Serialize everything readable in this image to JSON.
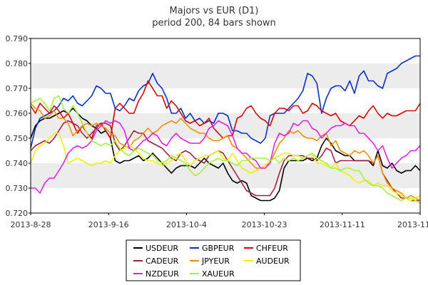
{
  "chart_data": {
    "type": "line",
    "title": "Majors vs EUR (D1)",
    "subtitle": "period 200, 84 bars shown",
    "ylim": [
      0.72,
      0.79
    ],
    "y_ticks": [
      "0.790",
      "0.780",
      "0.770",
      "0.760",
      "0.750",
      "0.740",
      "0.730",
      "0.720"
    ],
    "x_tick_labels": [
      "2013-8-28",
      "2013-9-16",
      "2013-10-4",
      "2013-10-23",
      "2013-11-11",
      "2013-11-29"
    ],
    "x_count": 84,
    "grid": "horizontal bands",
    "legend_position": "bottom",
    "series": [
      {
        "name": "USDEUR",
        "color": "#000000",
        "values": [
          0.75,
          0.755,
          0.757,
          0.758,
          0.758,
          0.759,
          0.76,
          0.761,
          0.76,
          0.762,
          0.76,
          0.758,
          0.757,
          0.755,
          0.754,
          0.752,
          0.753,
          0.75,
          0.741,
          0.74,
          0.741,
          0.741,
          0.742,
          0.743,
          0.741,
          0.742,
          0.744,
          0.742,
          0.74,
          0.738,
          0.736,
          0.738,
          0.739,
          0.739,
          0.739,
          0.738,
          0.74,
          0.742,
          0.74,
          0.739,
          0.738,
          0.74,
          0.736,
          0.733,
          0.732,
          0.733,
          0.732,
          0.727,
          0.726,
          0.725,
          0.725,
          0.725,
          0.726,
          0.729,
          0.738,
          0.741,
          0.741,
          0.741,
          0.741,
          0.742,
          0.741,
          0.742,
          0.747,
          0.75,
          0.748,
          0.745,
          0.744,
          0.743,
          0.743,
          0.741,
          0.741,
          0.741,
          0.741,
          0.739,
          0.745,
          0.739,
          0.738,
          0.74,
          0.737,
          0.736,
          0.737,
          0.737,
          0.739,
          0.737
        ]
      },
      {
        "name": "GBPEUR",
        "color": "#0a2fc5",
        "values": [
          0.746,
          0.754,
          0.758,
          0.759,
          0.76,
          0.761,
          0.763,
          0.766,
          0.765,
          0.767,
          0.764,
          0.763,
          0.765,
          0.767,
          0.771,
          0.77,
          0.768,
          0.768,
          0.762,
          0.761,
          0.763,
          0.766,
          0.765,
          0.769,
          0.771,
          0.772,
          0.776,
          0.772,
          0.77,
          0.766,
          0.76,
          0.76,
          0.762,
          0.758,
          0.76,
          0.757,
          0.758,
          0.756,
          0.757,
          0.756,
          0.76,
          0.76,
          0.759,
          0.753,
          0.753,
          0.752,
          0.752,
          0.75,
          0.749,
          0.748,
          0.75,
          0.759,
          0.76,
          0.76,
          0.76,
          0.762,
          0.764,
          0.766,
          0.769,
          0.776,
          0.775,
          0.772,
          0.76,
          0.766,
          0.77,
          0.771,
          0.771,
          0.769,
          0.773,
          0.768,
          0.775,
          0.777,
          0.773,
          0.773,
          0.771,
          0.77,
          0.776,
          0.777,
          0.778,
          0.78,
          0.781,
          0.782,
          0.783,
          0.783
        ]
      },
      {
        "name": "CHFEUR",
        "color": "#d80000",
        "values": [
          0.763,
          0.76,
          0.764,
          0.762,
          0.76,
          0.763,
          0.761,
          0.758,
          0.76,
          0.756,
          0.752,
          0.755,
          0.752,
          0.75,
          0.755,
          0.756,
          0.753,
          0.75,
          0.762,
          0.764,
          0.762,
          0.76,
          0.76,
          0.765,
          0.768,
          0.773,
          0.77,
          0.767,
          0.767,
          0.762,
          0.765,
          0.763,
          0.76,
          0.757,
          0.756,
          0.757,
          0.755,
          0.756,
          0.758,
          0.754,
          0.752,
          0.75,
          0.751,
          0.751,
          0.758,
          0.759,
          0.762,
          0.763,
          0.76,
          0.758,
          0.757,
          0.755,
          0.76,
          0.762,
          0.762,
          0.761,
          0.763,
          0.763,
          0.76,
          0.761,
          0.764,
          0.763,
          0.761,
          0.76,
          0.759,
          0.76,
          0.757,
          0.756,
          0.755,
          0.757,
          0.759,
          0.758,
          0.761,
          0.763,
          0.76,
          0.758,
          0.76,
          0.759,
          0.759,
          0.76,
          0.761,
          0.761,
          0.761,
          0.764
        ]
      },
      {
        "name": "CADEUR",
        "color": "#a02040",
        "values": [
          0.745,
          0.747,
          0.748,
          0.749,
          0.748,
          0.75,
          0.753,
          0.756,
          0.757,
          0.756,
          0.755,
          0.752,
          0.75,
          0.752,
          0.754,
          0.756,
          0.756,
          0.755,
          0.748,
          0.745,
          0.747,
          0.75,
          0.753,
          0.752,
          0.752,
          0.749,
          0.748,
          0.747,
          0.746,
          0.744,
          0.742,
          0.741,
          0.744,
          0.745,
          0.744,
          0.742,
          0.741,
          0.74,
          0.743,
          0.744,
          0.745,
          0.744,
          0.741,
          0.738,
          0.735,
          0.732,
          0.729,
          0.728,
          0.727,
          0.727,
          0.727,
          0.727,
          0.73,
          0.736,
          0.741,
          0.743,
          0.743,
          0.743,
          0.743,
          0.742,
          0.742,
          0.741,
          0.743,
          0.746,
          0.745,
          0.74,
          0.741,
          0.741,
          0.741,
          0.741,
          0.741,
          0.741,
          0.741,
          0.74,
          0.743,
          0.736,
          0.733,
          0.73,
          0.728,
          0.726,
          0.726,
          0.725,
          0.725,
          0.725
        ]
      },
      {
        "name": "JPYEUR",
        "color": "#ee9000",
        "values": [
          0.764,
          0.762,
          0.761,
          0.758,
          0.759,
          0.761,
          0.758,
          0.758,
          0.756,
          0.751,
          0.753,
          0.755,
          0.756,
          0.755,
          0.756,
          0.755,
          0.754,
          0.752,
          0.751,
          0.748,
          0.747,
          0.746,
          0.749,
          0.75,
          0.752,
          0.754,
          0.752,
          0.753,
          0.755,
          0.756,
          0.757,
          0.756,
          0.758,
          0.756,
          0.754,
          0.753,
          0.752,
          0.752,
          0.75,
          0.749,
          0.749,
          0.75,
          0.751,
          0.747,
          0.746,
          0.744,
          0.742,
          0.74,
          0.738,
          0.738,
          0.739,
          0.74,
          0.744,
          0.748,
          0.75,
          0.753,
          0.752,
          0.753,
          0.751,
          0.75,
          0.75,
          0.749,
          0.751,
          0.752,
          0.747,
          0.749,
          0.745,
          0.744,
          0.743,
          0.745,
          0.744,
          0.745,
          0.743,
          0.74,
          0.743,
          0.736,
          0.732,
          0.73,
          0.729,
          0.728,
          0.726,
          0.727,
          0.726,
          0.725
        ]
      },
      {
        "name": "AUDEUR",
        "color": "#f0f000",
        "values": [
          0.74,
          0.745,
          0.747,
          0.748,
          0.75,
          0.752,
          0.752,
          0.747,
          0.74,
          0.741,
          0.742,
          0.741,
          0.74,
          0.739,
          0.74,
          0.74,
          0.741,
          0.74,
          0.743,
          0.745,
          0.746,
          0.747,
          0.746,
          0.744,
          0.742,
          0.741,
          0.741,
          0.74,
          0.739,
          0.74,
          0.741,
          0.743,
          0.744,
          0.741,
          0.739,
          0.741,
          0.742,
          0.743,
          0.743,
          0.744,
          0.745,
          0.742,
          0.741,
          0.744,
          0.741,
          0.738,
          0.737,
          0.736,
          0.737,
          0.738,
          0.739,
          0.741,
          0.742,
          0.743,
          0.744,
          0.744,
          0.743,
          0.743,
          0.742,
          0.743,
          0.744,
          0.74,
          0.74,
          0.739,
          0.738,
          0.74,
          0.737,
          0.736,
          0.735,
          0.733,
          0.732,
          0.733,
          0.733,
          0.731,
          0.732,
          0.731,
          0.731,
          0.729,
          0.728,
          0.727,
          0.726,
          0.725,
          0.726,
          0.727
        ]
      },
      {
        "name": "NZDEUR",
        "color": "#e020e0",
        "values": [
          0.73,
          0.73,
          0.728,
          0.732,
          0.734,
          0.734,
          0.737,
          0.74,
          0.744,
          0.746,
          0.747,
          0.746,
          0.747,
          0.749,
          0.753,
          0.755,
          0.757,
          0.756,
          0.757,
          0.756,
          0.753,
          0.746,
          0.745,
          0.747,
          0.749,
          0.75,
          0.752,
          0.751,
          0.748,
          0.747,
          0.75,
          0.752,
          0.75,
          0.749,
          0.748,
          0.748,
          0.748,
          0.75,
          0.754,
          0.755,
          0.757,
          0.756,
          0.755,
          0.751,
          0.746,
          0.744,
          0.744,
          0.742,
          0.741,
          0.738,
          0.738,
          0.74,
          0.748,
          0.752,
          0.751,
          0.752,
          0.756,
          0.755,
          0.757,
          0.757,
          0.754,
          0.753,
          0.75,
          0.752,
          0.754,
          0.755,
          0.755,
          0.756,
          0.755,
          0.755,
          0.752,
          0.752,
          0.75,
          0.748,
          0.745,
          0.747,
          0.742,
          0.738,
          0.74,
          0.742,
          0.743,
          0.745,
          0.745,
          0.747
        ]
      },
      {
        "name": "XAUEUR",
        "color": "#a8f040",
        "values": [
          0.764,
          0.765,
          0.766,
          0.764,
          0.761,
          0.766,
          0.767,
          0.762,
          0.76,
          0.763,
          0.76,
          0.756,
          0.752,
          0.749,
          0.748,
          0.747,
          0.748,
          0.747,
          0.749,
          0.746,
          0.744,
          0.743,
          0.745,
          0.746,
          0.745,
          0.744,
          0.743,
          0.741,
          0.74,
          0.741,
          0.743,
          0.742,
          0.741,
          0.74,
          0.737,
          0.735,
          0.736,
          0.738,
          0.74,
          0.741,
          0.742,
          0.741,
          0.741,
          0.74,
          0.739,
          0.741,
          0.741,
          0.742,
          0.742,
          0.742,
          0.742,
          0.741,
          0.742,
          0.74,
          0.742,
          0.741,
          0.742,
          0.741,
          0.742,
          0.743,
          0.744,
          0.742,
          0.741,
          0.74,
          0.738,
          0.738,
          0.737,
          0.738,
          0.738,
          0.737,
          0.737,
          0.734,
          0.732,
          0.731,
          0.731,
          0.73,
          0.728,
          0.727,
          0.726,
          0.725,
          0.726,
          0.726,
          0.725,
          0.724
        ]
      }
    ]
  }
}
